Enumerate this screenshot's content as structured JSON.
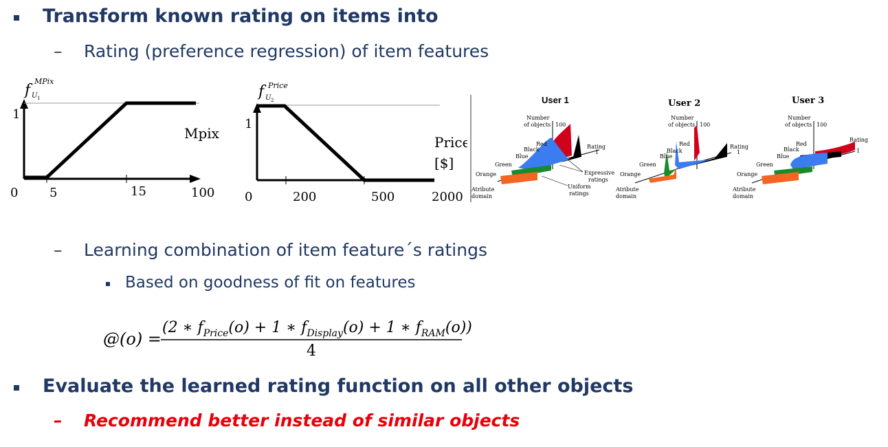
{
  "bullets": {
    "b1": "Transform known rating on items into",
    "b1_sub1": "Rating (preference regression) of item features",
    "b1_sub2": "Learning combination of item feature´s ratings",
    "b1_sub2_sub": "Based on goodness of fit on features",
    "b2": "Evaluate the learned rating function on all other objects",
    "b2_sub": "Recommend better instead of similar objects"
  },
  "dash_glyph": "–",
  "graph_mpix": {
    "f_label": "f",
    "f_sup": "MPix",
    "f_sub": "U",
    "f_subsub": "1",
    "y_tick": "1",
    "axis_label": "Mpix",
    "x_ticks": [
      "0",
      "5",
      "15",
      "100"
    ]
  },
  "graph_price": {
    "f_label": "f",
    "f_sup": "Price",
    "f_sub": "U",
    "f_subsub": "2",
    "y_tick": "1",
    "axis_label_1": "Price",
    "axis_label_2": "[$]",
    "x_ticks": [
      "0",
      "200",
      "500",
      "2000"
    ]
  },
  "users": {
    "u1": "User 1",
    "u2": "User 2",
    "u3": "User 3",
    "number": "Number",
    "of_objects": "of objects",
    "hundred": "100",
    "rating": "Rating",
    "one": "1",
    "zero": "0",
    "red": "Red",
    "black": "Black",
    "blue": "Blue",
    "green": "Green",
    "orange": "Orange",
    "attr1": "Atribute",
    "attr2": "domain",
    "expressive1": "Expressive",
    "expressive2": "ratings",
    "uniform1": "Uniform",
    "uniform2": "ratings",
    "colors": {
      "red": "#d0021b",
      "black": "#000000",
      "blue": "#3b7cf0",
      "green": "#1a8a2a",
      "orange": "#f26522"
    }
  },
  "formula": {
    "lhs": "@(o) =",
    "open": "(2 ∗ ",
    "f": "f",
    "price": "Price",
    "o1": "(o) + 1 ∗ ",
    "display": "Display",
    "o2": "(o) + 1 ∗ ",
    "ram": "RAM",
    "o3": "(o))",
    "den": "4"
  }
}
